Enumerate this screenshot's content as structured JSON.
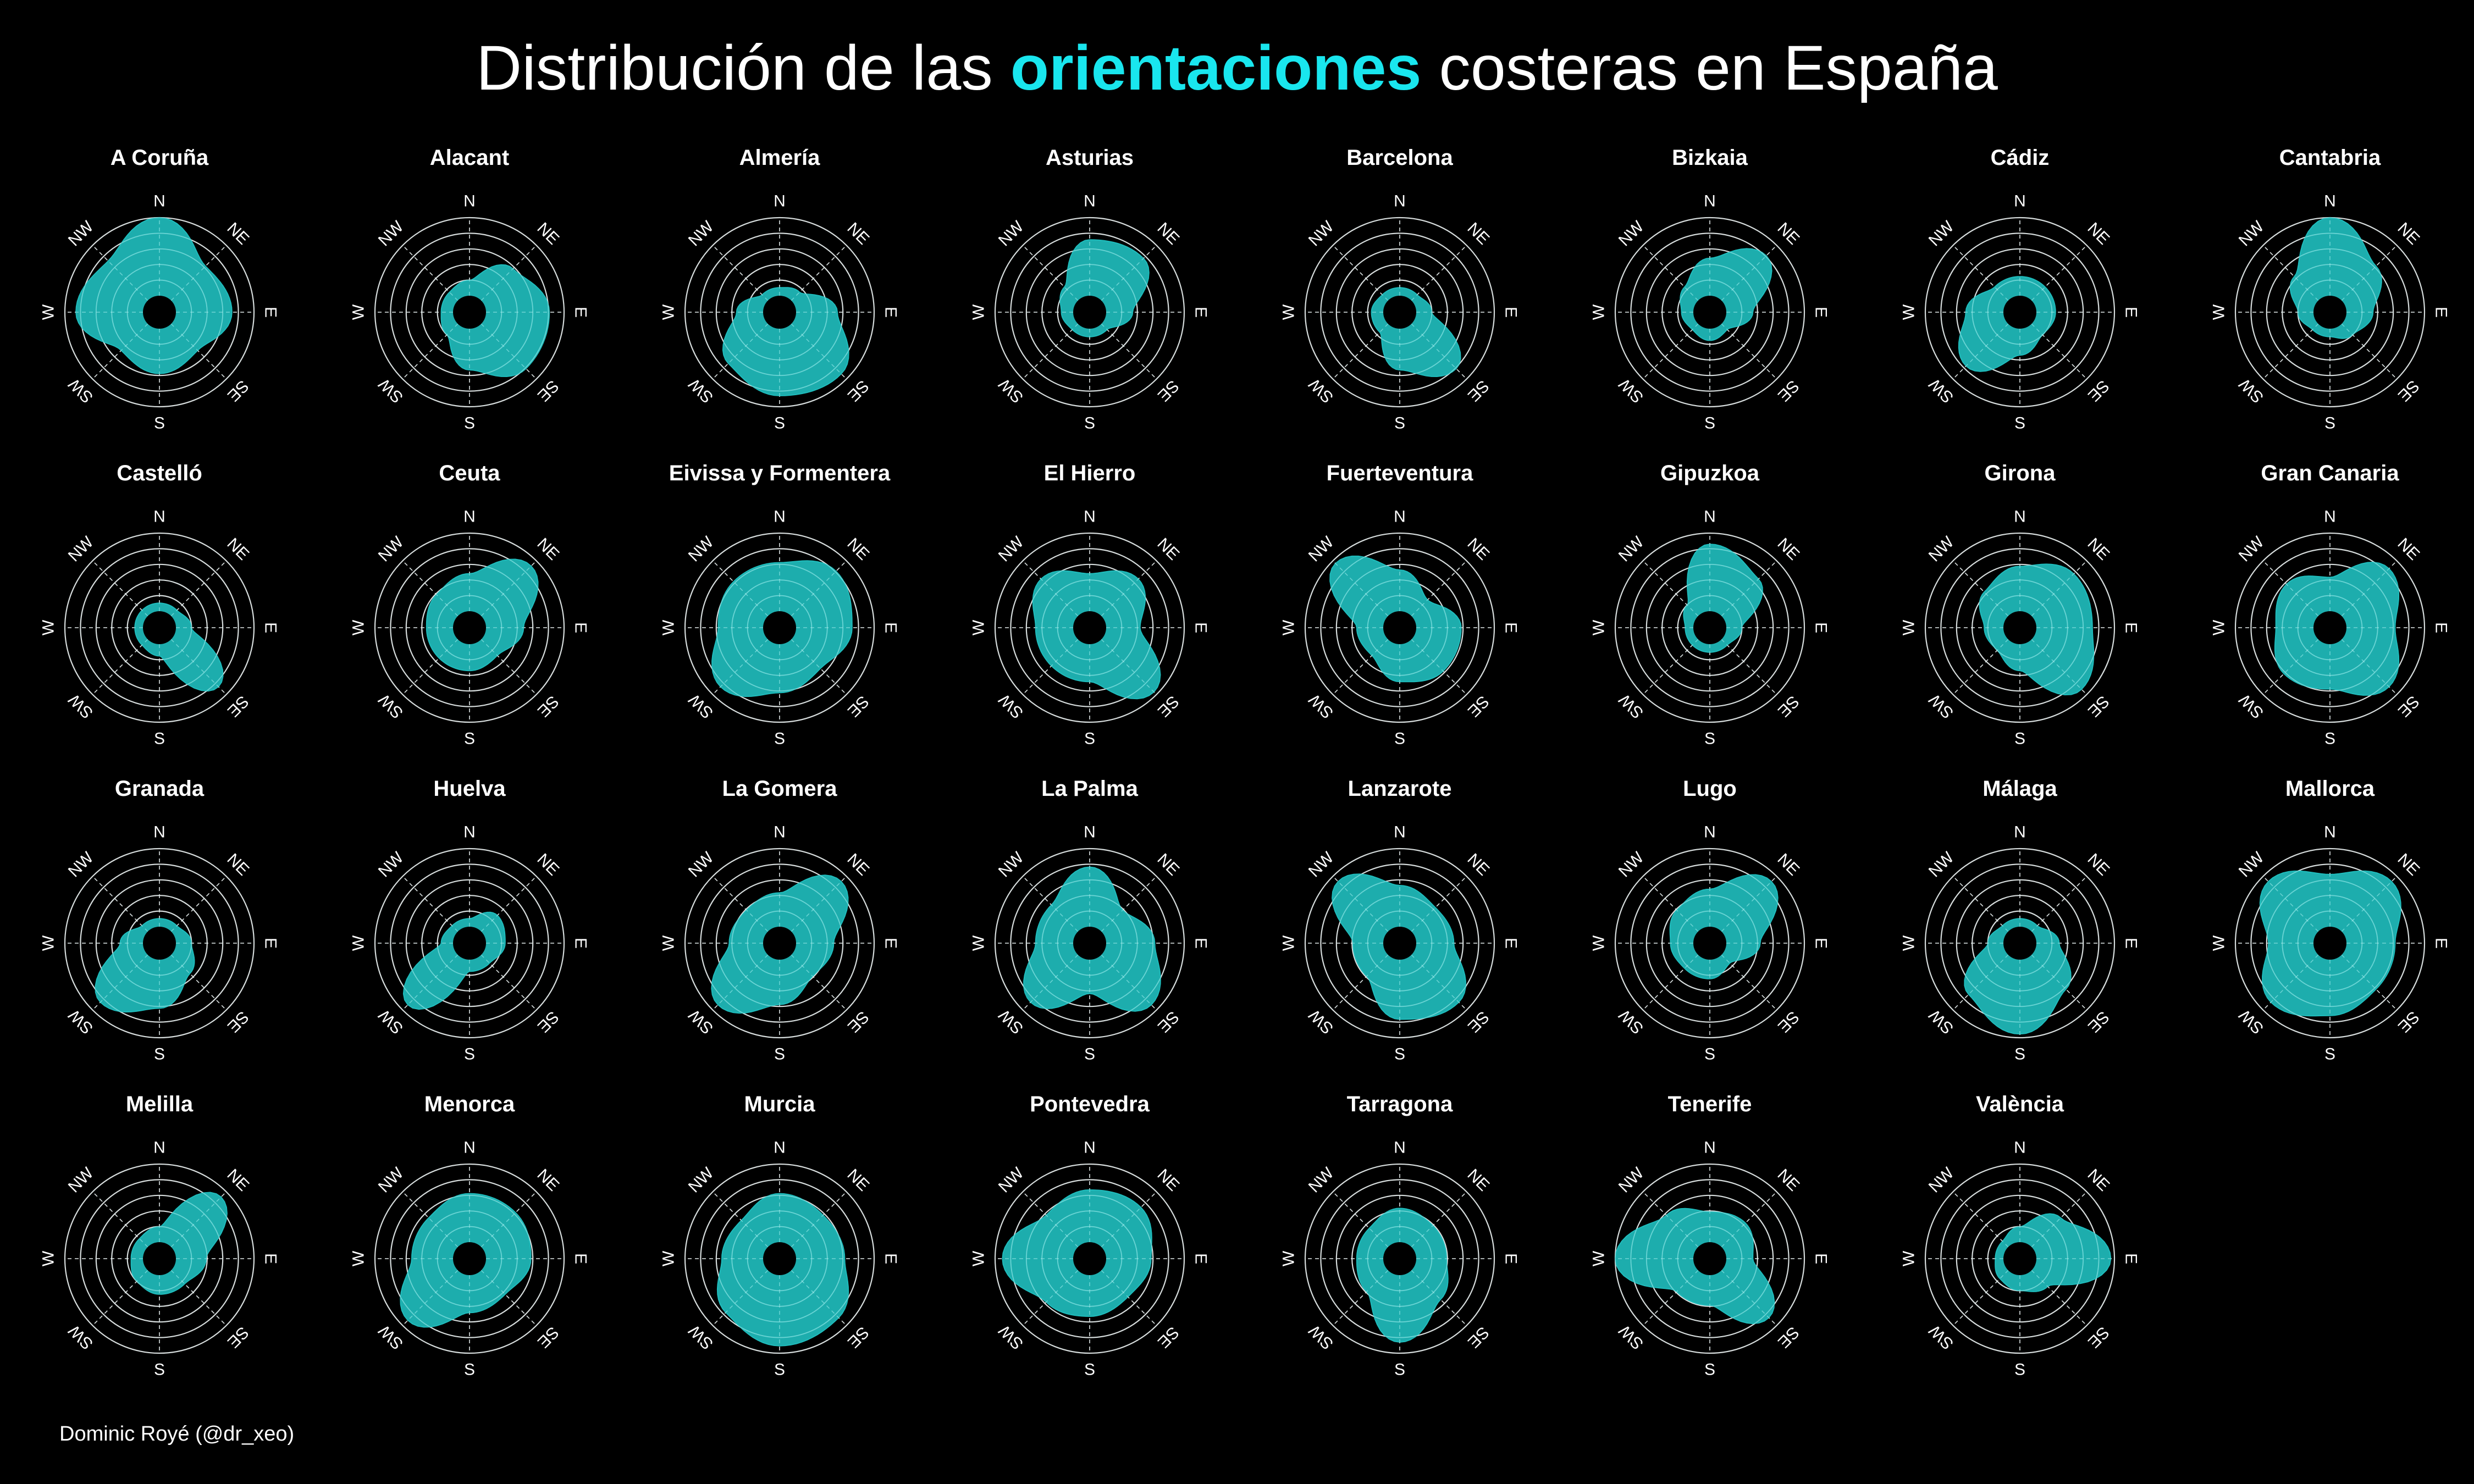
{
  "title": {
    "prefix": "Distribución de las ",
    "highlight": "orientaciones",
    "suffix": " costeras en España"
  },
  "caption": "Dominic Royé (@dr_xeo)",
  "colors": {
    "fill": "#1fbcbc",
    "highlight": "#19e6ee",
    "grid": "#cfcfcf",
    "background": "#000000"
  },
  "chart_data": {
    "type": "radar",
    "description_axes": "Polar rose of coastline orientation frequency per province",
    "directions": [
      "N",
      "NE",
      "E",
      "SE",
      "S",
      "SW",
      "W",
      "NW"
    ],
    "radial_rings": 5,
    "panels": [
      {
        "name": "A Coruña",
        "values": [
          1.0,
          0.6,
          0.7,
          0.45,
          0.55,
          0.45,
          0.85,
          0.7
        ]
      },
      {
        "name": "Alacant",
        "values": [
          0.15,
          0.55,
          0.8,
          0.8,
          0.5,
          0.15,
          0.1,
          0.1
        ]
      },
      {
        "name": "Almería",
        "values": [
          0.05,
          0.1,
          0.5,
          0.9,
          0.85,
          0.7,
          0.3,
          0.05
        ]
      },
      {
        "name": "Asturias",
        "values": [
          0.7,
          0.75,
          0.3,
          0.05,
          0.05,
          0.05,
          0.1,
          0.2
        ]
      },
      {
        "name": "Barcelona",
        "values": [
          0.05,
          0.05,
          0.15,
          0.8,
          0.5,
          0.1,
          0.1,
          0.05
        ]
      },
      {
        "name": "Bizkaia",
        "values": [
          0.45,
          0.8,
          0.3,
          0.05,
          0.1,
          0.05,
          0.1,
          0.2
        ]
      },
      {
        "name": "Cádiz",
        "values": [
          0.2,
          0.2,
          0.2,
          0.15,
          0.3,
          0.75,
          0.45,
          0.2
        ]
      },
      {
        "name": "Cantabria",
        "values": [
          1.0,
          0.6,
          0.3,
          0.15,
          0.05,
          0.05,
          0.15,
          0.4
        ]
      },
      {
        "name": "Castelló",
        "values": [
          0.05,
          0.05,
          0.15,
          0.85,
          0.1,
          0.05,
          0.05,
          0.05
        ]
      },
      {
        "name": "Ceuta",
        "values": [
          0.45,
          0.9,
          0.45,
          0.25,
          0.3,
          0.3,
          0.3,
          0.35
        ]
      },
      {
        "name": "Eivissa y Formentera",
        "values": [
          0.6,
          0.8,
          0.7,
          0.5,
          0.6,
          0.85,
          0.55,
          0.6
        ]
      },
      {
        "name": "El Hierro",
        "values": [
          0.45,
          0.65,
          0.4,
          0.95,
          0.45,
          0.45,
          0.45,
          0.65
        ]
      },
      {
        "name": "Fuerteventura",
        "values": [
          0.5,
          0.25,
          0.55,
          0.55,
          0.45,
          0.25,
          0.3,
          0.95
        ]
      },
      {
        "name": "Gipuzkoa",
        "values": [
          0.85,
          0.65,
          0.15,
          0.05,
          0.05,
          0.05,
          0.05,
          0.15
        ]
      },
      {
        "name": "Girona",
        "values": [
          0.55,
          0.75,
          0.7,
          0.9,
          0.3,
          0.15,
          0.2,
          0.4
        ]
      },
      {
        "name": "Gran Canaria",
        "values": [
          0.4,
          0.85,
          0.6,
          0.85,
          0.55,
          0.6,
          0.45,
          0.55
        ]
      },
      {
        "name": "Granada",
        "values": [
          0.05,
          0.05,
          0.15,
          0.3,
          0.6,
          0.85,
          0.25,
          0.05
        ]
      },
      {
        "name": "Huelva",
        "values": [
          0.05,
          0.25,
          0.2,
          0.1,
          0.1,
          0.9,
          0.1,
          0.05
        ]
      },
      {
        "name": "La Gomera",
        "values": [
          0.4,
          0.9,
          0.45,
          0.35,
          0.55,
          0.9,
          0.4,
          0.35
        ]
      },
      {
        "name": "La Palma",
        "values": [
          0.75,
          0.35,
          0.6,
          0.9,
          0.4,
          0.85,
          0.45,
          0.45
        ]
      },
      {
        "name": "Lanzarote",
        "values": [
          0.5,
          0.4,
          0.45,
          0.85,
          0.75,
          0.35,
          0.35,
          0.9
        ]
      },
      {
        "name": "Lugo",
        "values": [
          0.45,
          0.9,
          0.4,
          0.1,
          0.2,
          0.2,
          0.25,
          0.35
        ]
      },
      {
        "name": "Málaga",
        "values": [
          0.05,
          0.05,
          0.25,
          0.6,
          0.95,
          0.7,
          0.15,
          0.05
        ]
      },
      {
        "name": "Mallorca",
        "values": [
          0.65,
          0.9,
          0.6,
          0.6,
          0.7,
          0.85,
          0.55,
          0.9
        ]
      },
      {
        "name": "Melilla",
        "values": [
          0.15,
          0.9,
          0.35,
          0.2,
          0.2,
          0.15,
          0.1,
          0.1
        ]
      },
      {
        "name": "Menorca",
        "values": [
          0.6,
          0.6,
          0.55,
          0.4,
          0.45,
          0.9,
          0.5,
          0.5
        ]
      },
      {
        "name": "Murcia",
        "values": [
          0.6,
          0.55,
          0.6,
          0.85,
          0.9,
          0.75,
          0.5,
          0.45
        ]
      },
      {
        "name": "Pontevedra",
        "values": [
          0.65,
          0.7,
          0.55,
          0.45,
          0.5,
          0.55,
          0.9,
          0.55
        ]
      },
      {
        "name": "Tarragona",
        "values": [
          0.4,
          0.35,
          0.35,
          0.5,
          0.85,
          0.35,
          0.3,
          0.3
        ]
      },
      {
        "name": "Tenerife",
        "values": [
          0.35,
          0.4,
          0.3,
          0.85,
          0.35,
          0.35,
          1.0,
          0.55
        ]
      },
      {
        "name": "València",
        "values": [
          0.15,
          0.5,
          0.95,
          0.25,
          0.15,
          0.1,
          0.05,
          0.05
        ]
      }
    ]
  }
}
